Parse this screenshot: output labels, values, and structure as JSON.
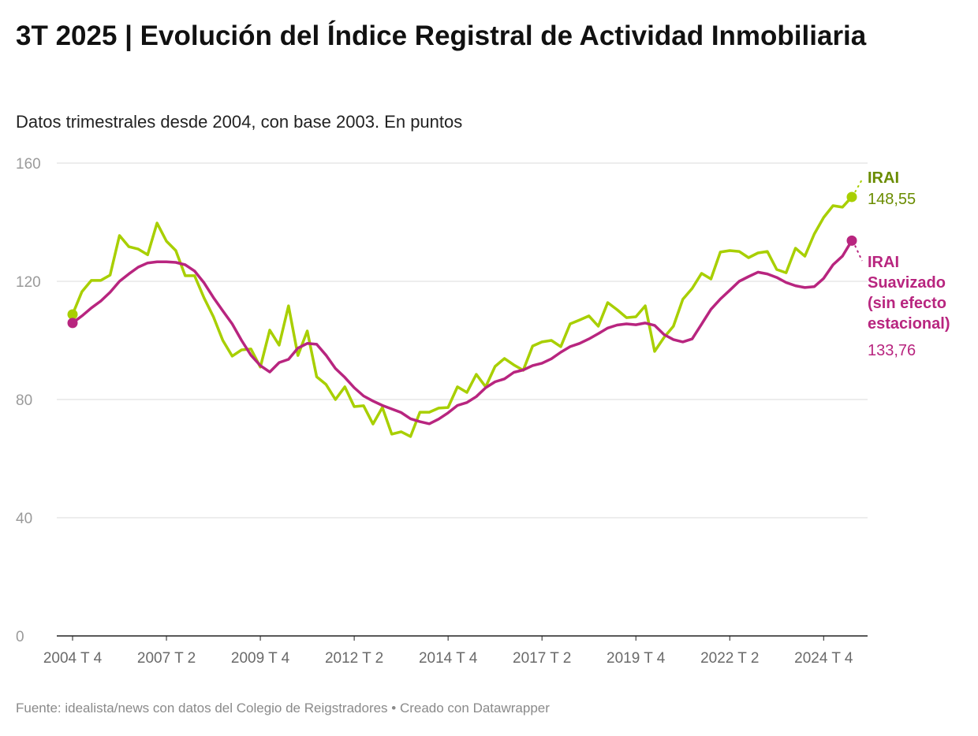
{
  "header": {
    "title": "3T 2025 | Evolución del Índice Registral de Actividad Inmobiliaria",
    "subtitle": "Datos trimestrales desde 2004, con base 2003. En puntos"
  },
  "footer": {
    "text": "Fuente: idealista/news con datos del Colegio de Reigstradores • Creado con Datawrapper"
  },
  "chart_data": {
    "type": "line",
    "title": "3T 2025 | Evolución del Índice Registral de Actividad Inmobiliaria",
    "subtitle": "Datos trimestrales desde 2004, con base 2003. En puntos",
    "xlabel": "",
    "ylabel": "",
    "ylim": [
      0,
      160
    ],
    "yticks": [
      "0",
      "40",
      "80",
      "120",
      "160"
    ],
    "ytick_values": [
      0,
      40,
      80,
      120,
      160
    ],
    "xticks": [
      "2004 T 4",
      "2007 T 2",
      "2009 T 4",
      "2012 T 2",
      "2014 T 4",
      "2017 T 2",
      "2019 T 4",
      "2022 T 2",
      "2024 T 4"
    ],
    "grid": "horizontal",
    "legend": "direct labels right",
    "x_start": "2004 T 4",
    "x_end": "2025 T 3",
    "x_frequency": "quarterly",
    "series": [
      {
        "name": "IRAI",
        "color": "#a8cf00",
        "label_color": "#6a8c00",
        "end_label": "148,55",
        "values": [
          108.8,
          116.5,
          120.3,
          120.3,
          122.1,
          135.5,
          131.7,
          130.9,
          129,
          139.7,
          133.6,
          130.4,
          121.9,
          121.9,
          114.4,
          108,
          100,
          94.7,
          96.8,
          97.1,
          91,
          103.5,
          98.4,
          111.7,
          94.9,
          103.2,
          87.7,
          85.1,
          80,
          84.3,
          77.6,
          77.9,
          71.7,
          77.3,
          68.3,
          69.1,
          67.5,
          75.7,
          75.7,
          77.1,
          77.3,
          84.3,
          82.4,
          88.5,
          84.3,
          91.2,
          93.9,
          91.7,
          89.9,
          98.1,
          99.5,
          100,
          97.9,
          105.6,
          106.9,
          108.3,
          104.8,
          112.8,
          110.4,
          107.7,
          108,
          111.7,
          96.3,
          101,
          104.8,
          113.9,
          117.6,
          122.7,
          120.8,
          129.9,
          130.4,
          130.1,
          128,
          129.6,
          130.1,
          124,
          122.9,
          131.2,
          128.5,
          136,
          141.6,
          145.6,
          145.1,
          148.55
        ]
      },
      {
        "name": "IRAI Suavizado (sin efecto estacional)",
        "name_lines": [
          "IRAI",
          "Suavizado",
          "(sin efecto",
          "estacional)"
        ],
        "color": "#b8257f",
        "label_color": "#b8257f",
        "end_label": "133,76",
        "values": [
          105.9,
          108.3,
          111,
          113.3,
          116.3,
          120,
          122.5,
          124.8,
          126.2,
          126.6,
          126.6,
          126.4,
          125.6,
          123.5,
          119.5,
          114.5,
          110,
          105.6,
          100,
          95,
          91.5,
          89.3,
          92.5,
          93.6,
          97.4,
          99,
          98.7,
          95,
          90.5,
          87.5,
          84,
          81.2,
          79.5,
          78,
          76.8,
          75.6,
          73.5,
          72.5,
          71.8,
          73.4,
          75.5,
          78,
          79,
          81,
          84,
          86,
          87,
          89.2,
          90,
          91.5,
          92.3,
          93.8,
          96,
          97.9,
          99,
          100.5,
          102.3,
          104.2,
          105.2,
          105.6,
          105.3,
          105.9,
          105.1,
          102,
          100.3,
          99.5,
          100.5,
          105.5,
          110.5,
          114,
          117,
          120,
          121.6,
          123.1,
          122.5,
          121.3,
          119.6,
          118.5,
          117.9,
          118.2,
          121,
          125.6,
          128.5,
          133.76
        ]
      }
    ]
  }
}
